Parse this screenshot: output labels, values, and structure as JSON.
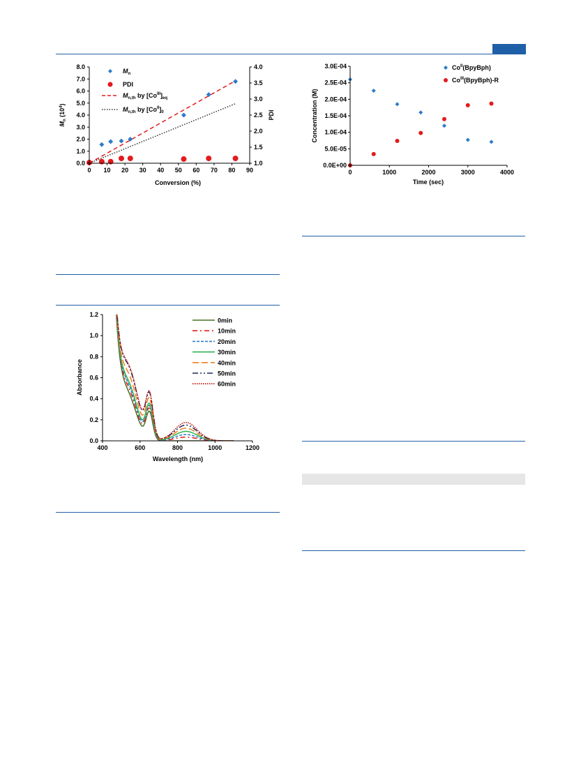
{
  "header": {
    "accent": "#1f5fa8"
  },
  "chart_data": [
    {
      "type": "scatter",
      "xlabel": "Conversion (%)",
      "ylabel": "Mn (10⁴)",
      "y2label": "PDI",
      "xlim": [
        0,
        90
      ],
      "ylim": [
        0,
        8
      ],
      "y2lim": [
        1.0,
        4.0
      ],
      "xticks": [
        "0",
        "10",
        "20",
        "30",
        "40",
        "50",
        "60",
        "70",
        "80",
        "90"
      ],
      "yticks": [
        "0.0",
        "1.0",
        "2.0",
        "3.0",
        "4.0",
        "5.0",
        "6.0",
        "7.0",
        "8.0"
      ],
      "y2ticks": [
        "1.0",
        "1.5",
        "2.0",
        "2.5",
        "3.0",
        "3.5",
        "4.0"
      ],
      "legend": {
        "mn": "M",
        "mn_sub": "n",
        "pdi": "PDI",
        "th_eq_main": "M",
        "th_eq_sub": "n,th",
        "th_eq_by": " by [Co",
        "th_eq_sup": "III",
        "th_eq_close": "]",
        "th_eq_sub2": "eq",
        "th_0_main": "M",
        "th_0_sub": "n,th",
        "th_0_by": " by [Co",
        "th_0_sup": "II",
        "th_0_close": "]",
        "th_0_sub2": "0"
      },
      "series": [
        {
          "name": "Mn",
          "axis": "left",
          "color": "#2e7bc9",
          "marker": "diamond",
          "x": [
            0,
            7,
            12,
            18,
            23,
            53,
            67,
            82
          ],
          "y": [
            0.05,
            1.55,
            1.8,
            1.85,
            2.0,
            4.0,
            5.7,
            6.8
          ]
        },
        {
          "name": "PDI",
          "axis": "right",
          "color": "#e31a1c",
          "marker": "circle",
          "x": [
            0,
            7,
            12,
            18,
            23,
            53,
            67,
            82
          ],
          "y": [
            1.02,
            1.05,
            1.05,
            1.15,
            1.15,
            1.13,
            1.15,
            1.15
          ]
        },
        {
          "name": "Mn,th by [CoIII]eq",
          "axis": "left",
          "color": "#e31a1c",
          "dash": "6,4",
          "x": [
            0,
            82
          ],
          "y": [
            0,
            6.85
          ]
        },
        {
          "name": "Mn,th by [CoII]0",
          "axis": "left",
          "color": "#333333",
          "dash": "1.5,2",
          "x": [
            0,
            82
          ],
          "y": [
            0,
            4.95
          ]
        }
      ]
    },
    {
      "type": "scatter",
      "xlabel": "Time (sec)",
      "ylabel": "Concentration (M)",
      "xlim": [
        0,
        4000
      ],
      "ylim": [
        0,
        0.0003
      ],
      "xticks": [
        "0",
        "1000",
        "2000",
        "3000",
        "4000"
      ],
      "yticks": [
        "0.0E+00",
        "5.0E-05",
        "1.0E-04",
        "1.5E-04",
        "2.0E-04",
        "2.5E-04",
        "3.0E-04"
      ],
      "legend": {
        "a_pre": "Co",
        "a_sup": "II",
        "a_post": "(BpyBph)",
        "b_pre": "Co",
        "b_sup": "III",
        "b_post": "(BpyBph)-R"
      },
      "series": [
        {
          "name": "CoII(BpyBph)",
          "color": "#2e7bc9",
          "marker": "diamond",
          "x": [
            0,
            600,
            1200,
            1800,
            2400,
            3000,
            3600
          ],
          "y": [
            0.00026,
            0.000226,
            0.000185,
            0.00016,
            0.00012,
            7.7e-05,
            7.1e-05
          ]
        },
        {
          "name": "CoIII(BpyBph)-R",
          "color": "#e31a1c",
          "marker": "circle",
          "x": [
            0,
            600,
            1200,
            1800,
            2400,
            3000,
            3600
          ],
          "y": [
            0.0,
            3.4e-05,
            7.4e-05,
            9.8e-05,
            0.00014,
            0.000182,
            0.000187
          ]
        }
      ]
    },
    {
      "type": "line",
      "xlabel": "Wavelength (nm)",
      "ylabel": "Absorbance",
      "xlim": [
        400,
        1200
      ],
      "ylim": [
        0,
        1.2
      ],
      "xticks": [
        "400",
        "600",
        "800",
        "1000",
        "1200"
      ],
      "yticks": [
        "0.0",
        "0.2",
        "0.4",
        "0.6",
        "0.8",
        "1.0",
        "1.2"
      ],
      "series": [
        {
          "name": "0min",
          "color": "#4a7023",
          "dash": "",
          "s": 0.0,
          "n": 0.0
        },
        {
          "name": "10min",
          "color": "#e31a1c",
          "dash": "7,4,2,4",
          "s": 0.13,
          "n": 0.035
        },
        {
          "name": "20min",
          "color": "#2e7bc9",
          "dash": "4,2",
          "s": 0.23,
          "n": 0.06
        },
        {
          "name": "30min",
          "color": "#2fb24e",
          "dash": "",
          "s": 0.32,
          "n": 0.09
        },
        {
          "name": "40min",
          "color": "#f07f19",
          "dash": "9,4",
          "s": 0.55,
          "n": 0.12
        },
        {
          "name": "50min",
          "color": "#1a2a5a",
          "dash": "8,3,2,3,2,3",
          "s": 0.78,
          "n": 0.15
        },
        {
          "name": "60min",
          "color": "#c00000",
          "dash": "1.5,1.5",
          "s": 0.82,
          "n": 0.175
        }
      ]
    }
  ]
}
